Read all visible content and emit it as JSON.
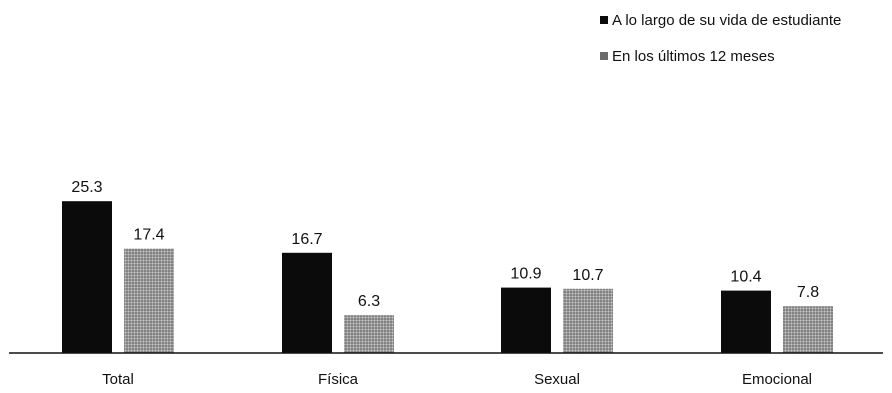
{
  "chart_data": {
    "type": "bar",
    "categories": [
      "Total",
      "Física",
      "Sexual",
      "Emocional"
    ],
    "series": [
      {
        "name": "A lo largo de su vida de estudiante",
        "values": [
          25.3,
          16.7,
          10.9,
          10.4
        ],
        "color": "#0b0b0b"
      },
      {
        "name": "En los últimos 12 meses",
        "values": [
          17.4,
          6.3,
          10.7,
          7.8
        ],
        "color": "#9a9a9a"
      }
    ],
    "value_labels": [
      [
        "25.3",
        "16.7",
        "10.9",
        "10.4"
      ],
      [
        "17.4",
        "6.3",
        "10.7",
        "7.8"
      ]
    ],
    "title": "",
    "xlabel": "",
    "ylabel": "",
    "ylim": [
      0,
      30
    ],
    "y_axis_visible": false,
    "grid": false,
    "legend_position": "top-right"
  }
}
